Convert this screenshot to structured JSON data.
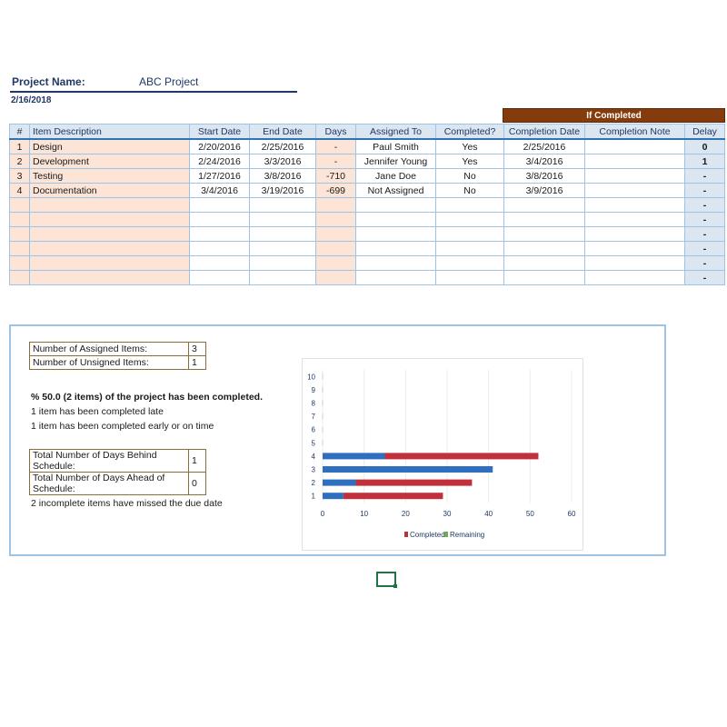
{
  "header": {
    "project_label": "Project Name:",
    "project_value": "ABC Project",
    "date": "2/16/2018"
  },
  "banner": "If Completed",
  "table": {
    "columns": [
      "#",
      "Item Description",
      "Start Date",
      "End Date",
      "Days",
      "Assigned To",
      "Completed?",
      "Completion Date",
      "Completion Note",
      "Delay"
    ],
    "rows": [
      [
        "1",
        "Design",
        "2/20/2016",
        "2/25/2016",
        "-",
        "Paul Smith",
        "Yes",
        "2/25/2016",
        "",
        "0"
      ],
      [
        "2",
        "Development",
        "2/24/2016",
        "3/3/2016",
        "-",
        "Jennifer Young",
        "Yes",
        "3/4/2016",
        "",
        "1"
      ],
      [
        "3",
        "Testing",
        "1/27/2016",
        "3/8/2016",
        "-710",
        "Jane Doe",
        "No",
        "3/8/2016",
        "",
        "-"
      ],
      [
        "4",
        "Documentation",
        "3/4/2016",
        "3/19/2016",
        "-699",
        "Not Assigned",
        "No",
        "3/9/2016",
        "",
        "-"
      ],
      [
        "",
        "",
        "",
        "",
        "",
        "",
        "",
        "",
        "",
        "-"
      ],
      [
        "",
        "",
        "",
        "",
        "",
        "",
        "",
        "",
        "",
        "-"
      ],
      [
        "",
        "",
        "",
        "",
        "",
        "",
        "",
        "",
        "",
        "-"
      ],
      [
        "",
        "",
        "",
        "",
        "",
        "",
        "",
        "",
        "",
        "-"
      ],
      [
        "",
        "",
        "",
        "",
        "",
        "",
        "",
        "",
        "",
        "-"
      ],
      [
        "",
        "",
        "",
        "",
        "",
        "",
        "",
        "",
        "",
        "-"
      ]
    ]
  },
  "summary": {
    "assigned_label": "Number of Assigned Items:",
    "assigned_value": "3",
    "unassigned_label": "Number of Unsigned Items:",
    "unassigned_value": "1",
    "completed_text": "% 50.0 (2 items) of the project has been completed.",
    "late_text": "1 item has been completed late",
    "early_text": "1 item has been completed early or on time",
    "behind_label": "Total Number of Days Behind Schedule:",
    "behind_value": "1",
    "ahead_label": "Total Number of Days Ahead of Schedule:",
    "ahead_value": "0",
    "missed_text": "2 incomplete items have missed the due date"
  },
  "chart_data": {
    "type": "bar",
    "orientation": "horizontal",
    "stacked": true,
    "categories": [
      "1",
      "2",
      "3",
      "4",
      "5",
      "6",
      "7",
      "8",
      "9",
      "10"
    ],
    "series": [
      {
        "name": "Completed",
        "color": "#c0313b",
        "values": [
          24,
          28,
          0,
          37,
          0,
          0,
          0,
          0,
          0,
          0
        ]
      },
      {
        "name": "Remaining",
        "color": "#2e6fc0",
        "values": [
          5,
          8,
          41,
          15,
          0,
          0,
          0,
          0,
          0,
          0
        ]
      }
    ],
    "xlim": [
      0,
      60
    ],
    "xticks": [
      "0",
      "10",
      "20",
      "30",
      "40",
      "50",
      "60"
    ],
    "legend": "bottom",
    "grid": true
  }
}
